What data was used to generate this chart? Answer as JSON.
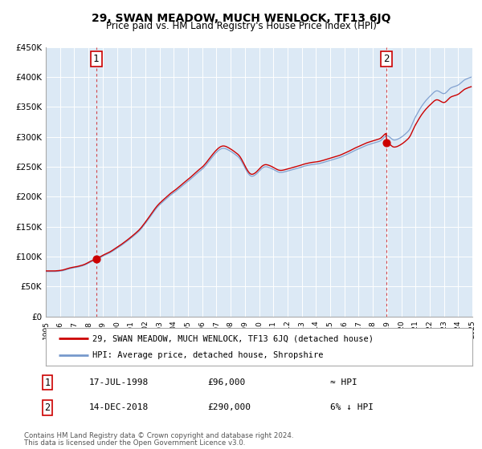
{
  "title": "29, SWAN MEADOW, MUCH WENLOCK, TF13 6JQ",
  "subtitle": "Price paid vs. HM Land Registry's House Price Index (HPI)",
  "legend_entry1": "29, SWAN MEADOW, MUCH WENLOCK, TF13 6JQ (detached house)",
  "legend_entry2": "HPI: Average price, detached house, Shropshire",
  "annotation1_date": "17-JUL-1998",
  "annotation1_price": "£96,000",
  "annotation1_hpi": "≈ HPI",
  "annotation2_date": "14-DEC-2018",
  "annotation2_price": "£290,000",
  "annotation2_hpi": "6% ↓ HPI",
  "footer1": "Contains HM Land Registry data © Crown copyright and database right 2024.",
  "footer2": "This data is licensed under the Open Government Licence v3.0.",
  "sale1_x": 1998.54,
  "sale1_y": 96000,
  "sale2_x": 2018.96,
  "sale2_y": 290000,
  "xlim": [
    1995,
    2025
  ],
  "ylim": [
    0,
    450000
  ],
  "hpi_color": "#7799cc",
  "price_color": "#cc0000",
  "plot_bg": "#dce9f5",
  "grid_color": "#ffffff",
  "ytick_labels": [
    "£0",
    "£50K",
    "£100K",
    "£150K",
    "£200K",
    "£250K",
    "£300K",
    "£350K",
    "£400K",
    "£450K"
  ],
  "ytick_values": [
    0,
    50000,
    100000,
    150000,
    200000,
    250000,
    300000,
    350000,
    400000,
    450000
  ]
}
